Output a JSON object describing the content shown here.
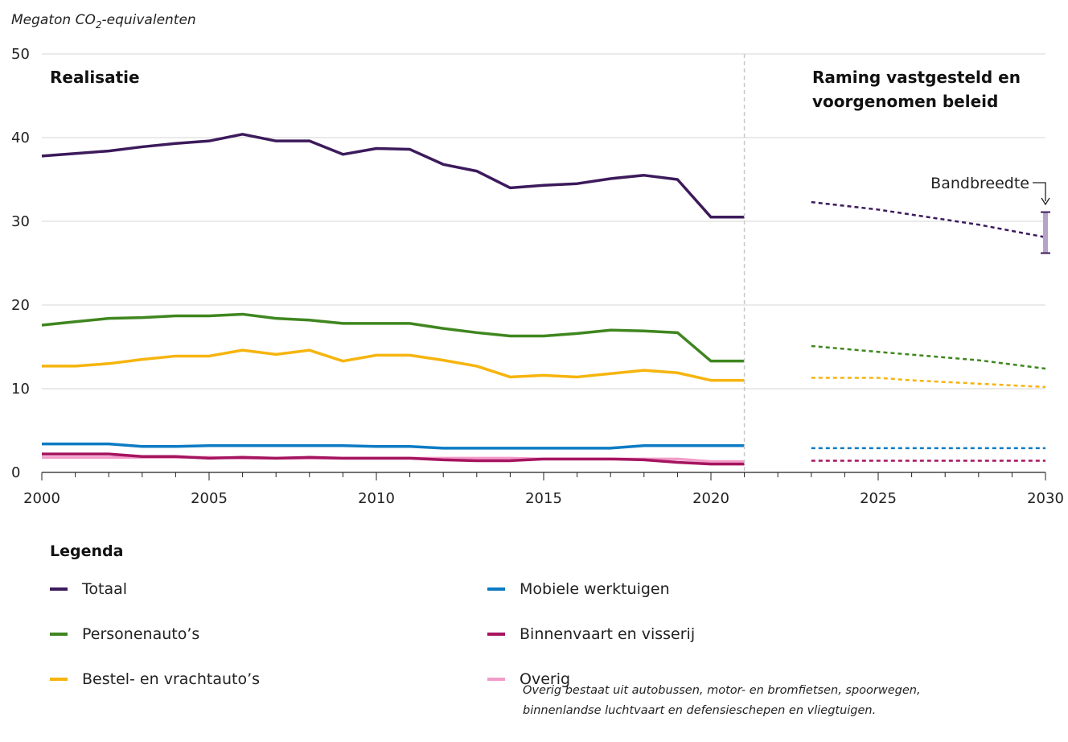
{
  "chart_data": {
    "type": "line",
    "ylabel_main": "Megaton CO",
    "ylabel_sub": "2",
    "ylabel_rest": "-equivalenten",
    "xlim": [
      2000,
      2030
    ],
    "ylim": [
      0,
      50
    ],
    "x_ticks": [
      2000,
      2005,
      2010,
      2015,
      2020,
      2025,
      2030
    ],
    "y_ticks": [
      0,
      10,
      20,
      30,
      40,
      50
    ],
    "grid": true,
    "divider_x": 2021,
    "region_left_label": "Realisatie",
    "region_right_label_lines": [
      "Raming vastgesteld en",
      "voorgenomen beleid"
    ],
    "band_label": "Bandbreedte",
    "band": {
      "x": 2030,
      "low": 26.2,
      "high": 31.1
    },
    "series": [
      {
        "name": "Totaal",
        "color": "#3c1a5b",
        "realisation": {
          "x": [
            2000,
            2001,
            2002,
            2003,
            2004,
            2005,
            2006,
            2007,
            2008,
            2009,
            2010,
            2011,
            2012,
            2013,
            2014,
            2015,
            2016,
            2017,
            2018,
            2019,
            2020,
            2021
          ],
          "y": [
            37.8,
            38.1,
            38.4,
            38.9,
            39.3,
            39.6,
            40.4,
            39.6,
            39.6,
            38.0,
            38.7,
            38.6,
            36.8,
            36.0,
            34.0,
            34.3,
            34.5,
            35.1,
            35.5,
            35.0,
            30.5,
            30.5
          ]
        },
        "projection": {
          "x": [
            2023,
            2025,
            2028,
            2030
          ],
          "y": [
            32.3,
            31.4,
            29.6,
            28.1
          ]
        }
      },
      {
        "name": "Personenauto’s",
        "color": "#3f861f",
        "realisation": {
          "x": [
            2000,
            2001,
            2002,
            2003,
            2004,
            2005,
            2006,
            2007,
            2008,
            2009,
            2010,
            2011,
            2012,
            2013,
            2014,
            2015,
            2016,
            2017,
            2018,
            2019,
            2020,
            2021
          ],
          "y": [
            17.6,
            18.0,
            18.4,
            18.5,
            18.7,
            18.7,
            18.9,
            18.4,
            18.2,
            17.8,
            17.8,
            17.8,
            17.2,
            16.7,
            16.3,
            16.3,
            16.6,
            17.0,
            16.9,
            16.7,
            13.3,
            13.3
          ]
        },
        "projection": {
          "x": [
            2023,
            2025,
            2028,
            2030
          ],
          "y": [
            15.1,
            14.4,
            13.4,
            12.4
          ]
        }
      },
      {
        "name": "Bestel- en vrachtauto’s",
        "color": "#f6b40e",
        "realisation": {
          "x": [
            2000,
            2001,
            2002,
            2003,
            2004,
            2005,
            2006,
            2007,
            2008,
            2009,
            2010,
            2011,
            2012,
            2013,
            2014,
            2015,
            2016,
            2017,
            2018,
            2019,
            2020,
            2021
          ],
          "y": [
            12.7,
            12.7,
            13.0,
            13.5,
            13.9,
            13.9,
            14.6,
            14.1,
            14.6,
            13.3,
            14.0,
            14.0,
            13.4,
            12.7,
            11.4,
            11.6,
            11.4,
            11.8,
            12.2,
            11.9,
            11.0,
            11.0
          ]
        },
        "projection": {
          "x": [
            2023,
            2025,
            2026,
            2030
          ],
          "y": [
            11.3,
            11.3,
            11.0,
            10.2
          ]
        }
      },
      {
        "name": "Mobiele werktuigen",
        "color": "#0d7bc4",
        "realisation": {
          "x": [
            2000,
            2001,
            2002,
            2003,
            2004,
            2005,
            2006,
            2007,
            2008,
            2009,
            2010,
            2011,
            2012,
            2013,
            2014,
            2015,
            2016,
            2017,
            2018,
            2019,
            2020,
            2021
          ],
          "y": [
            3.4,
            3.4,
            3.4,
            3.1,
            3.1,
            3.2,
            3.2,
            3.2,
            3.2,
            3.2,
            3.1,
            3.1,
            2.9,
            2.9,
            2.9,
            2.9,
            2.9,
            2.9,
            3.2,
            3.2,
            3.2,
            3.2
          ]
        },
        "projection": {
          "x": [
            2023,
            2030
          ],
          "y": [
            2.9,
            2.9
          ]
        }
      },
      {
        "name": "Binnenvaart en visserij",
        "color": "#a5145f",
        "realisation": {
          "x": [
            2000,
            2001,
            2002,
            2003,
            2004,
            2005,
            2006,
            2007,
            2008,
            2009,
            2010,
            2011,
            2012,
            2013,
            2014,
            2015,
            2016,
            2017,
            2018,
            2019,
            2020,
            2021
          ],
          "y": [
            2.2,
            2.2,
            2.2,
            1.9,
            1.9,
            1.7,
            1.8,
            1.7,
            1.8,
            1.7,
            1.7,
            1.7,
            1.5,
            1.4,
            1.4,
            1.6,
            1.6,
            1.6,
            1.5,
            1.2,
            1.0,
            1.0
          ]
        },
        "projection": {
          "x": [
            2023,
            2030
          ],
          "y": [
            1.4,
            1.4
          ]
        }
      },
      {
        "name": "Overig",
        "color": "#f29cc9",
        "realisation": {
          "x": [
            2000,
            2001,
            2002,
            2003,
            2004,
            2005,
            2006,
            2007,
            2008,
            2009,
            2010,
            2011,
            2012,
            2013,
            2014,
            2015,
            2016,
            2017,
            2018,
            2019,
            2020,
            2021
          ],
          "y": [
            1.8,
            1.8,
            1.8,
            1.8,
            1.8,
            1.8,
            1.7,
            1.7,
            1.7,
            1.7,
            1.7,
            1.7,
            1.7,
            1.7,
            1.7,
            1.6,
            1.6,
            1.6,
            1.6,
            1.6,
            1.3,
            1.3
          ]
        },
        "projection": null
      }
    ]
  },
  "legend": {
    "title": "Legenda",
    "items": [
      {
        "label": "Totaal",
        "color": "#3c1a5b"
      },
      {
        "label": "Mobiele werktuigen",
        "color": "#0d7bc4"
      },
      {
        "label": "Personenauto’s",
        "color": "#3f861f"
      },
      {
        "label": "Binnenvaart en visserij",
        "color": "#a5145f"
      },
      {
        "label": "Bestel- en vrachtauto’s",
        "color": "#f6b40e"
      },
      {
        "label": "Overig",
        "color": "#f29cc9"
      }
    ]
  },
  "note": {
    "line1": "Overig bestaat uit autobussen, motor- en bromfietsen, spoorwegen,",
    "line2": "binnenlandse luchtvaart en defensieschepen en vliegtuigen."
  }
}
